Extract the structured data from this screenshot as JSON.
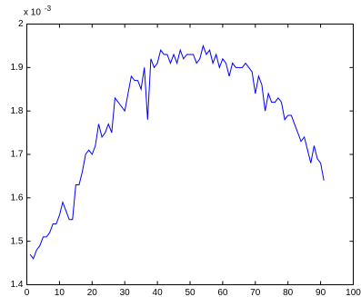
{
  "chart_data": {
    "type": "line",
    "y_multiplier": {
      "base": "x 10",
      "exponent": "-3"
    },
    "x": [
      1,
      2,
      3,
      4,
      5,
      6,
      7,
      8,
      9,
      10,
      11,
      12,
      13,
      14,
      15,
      16,
      17,
      18,
      19,
      20,
      21,
      22,
      23,
      24,
      25,
      26,
      27,
      28,
      29,
      30,
      31,
      32,
      33,
      34,
      35,
      36,
      37,
      38,
      39,
      40,
      41,
      42,
      43,
      44,
      45,
      46,
      47,
      48,
      49,
      50,
      51,
      52,
      53,
      54,
      55,
      56,
      57,
      58,
      59,
      60,
      61,
      62,
      63,
      64,
      65,
      66,
      67,
      68,
      69,
      70,
      71,
      72,
      73,
      74,
      75,
      76,
      77,
      78,
      79,
      80,
      81,
      82,
      83,
      84,
      85,
      86,
      87,
      88,
      89,
      90,
      91
    ],
    "series": [
      {
        "color": "#0000ff",
        "values": [
          1.47,
          1.46,
          1.48,
          1.49,
          1.51,
          1.51,
          1.52,
          1.54,
          1.54,
          1.56,
          1.59,
          1.57,
          1.55,
          1.55,
          1.63,
          1.63,
          1.66,
          1.7,
          1.71,
          1.7,
          1.72,
          1.77,
          1.74,
          1.75,
          1.77,
          1.75,
          1.83,
          1.82,
          1.81,
          1.8,
          1.84,
          1.88,
          1.87,
          1.87,
          1.85,
          1.9,
          1.78,
          1.92,
          1.9,
          1.91,
          1.94,
          1.93,
          1.93,
          1.91,
          1.93,
          1.91,
          1.94,
          1.92,
          1.93,
          1.93,
          1.93,
          1.91,
          1.92,
          1.95,
          1.93,
          1.94,
          1.91,
          1.93,
          1.9,
          1.92,
          1.91,
          1.88,
          1.91,
          1.9,
          1.9,
          1.9,
          1.91,
          1.9,
          1.89,
          1.84,
          1.88,
          1.86,
          1.8,
          1.84,
          1.82,
          1.82,
          1.83,
          1.82,
          1.78,
          1.79,
          1.79,
          1.77,
          1.75,
          1.73,
          1.74,
          1.71,
          1.68,
          1.72,
          1.69,
          1.68,
          1.64
        ]
      }
    ],
    "xlim": [
      0,
      100
    ],
    "xticks": [
      0,
      10,
      20,
      30,
      40,
      50,
      60,
      70,
      80,
      90,
      100
    ],
    "ylim": [
      1.4,
      2
    ],
    "yticks": [
      1.4,
      1.5,
      1.6,
      1.7,
      1.8,
      1.9,
      2
    ]
  }
}
